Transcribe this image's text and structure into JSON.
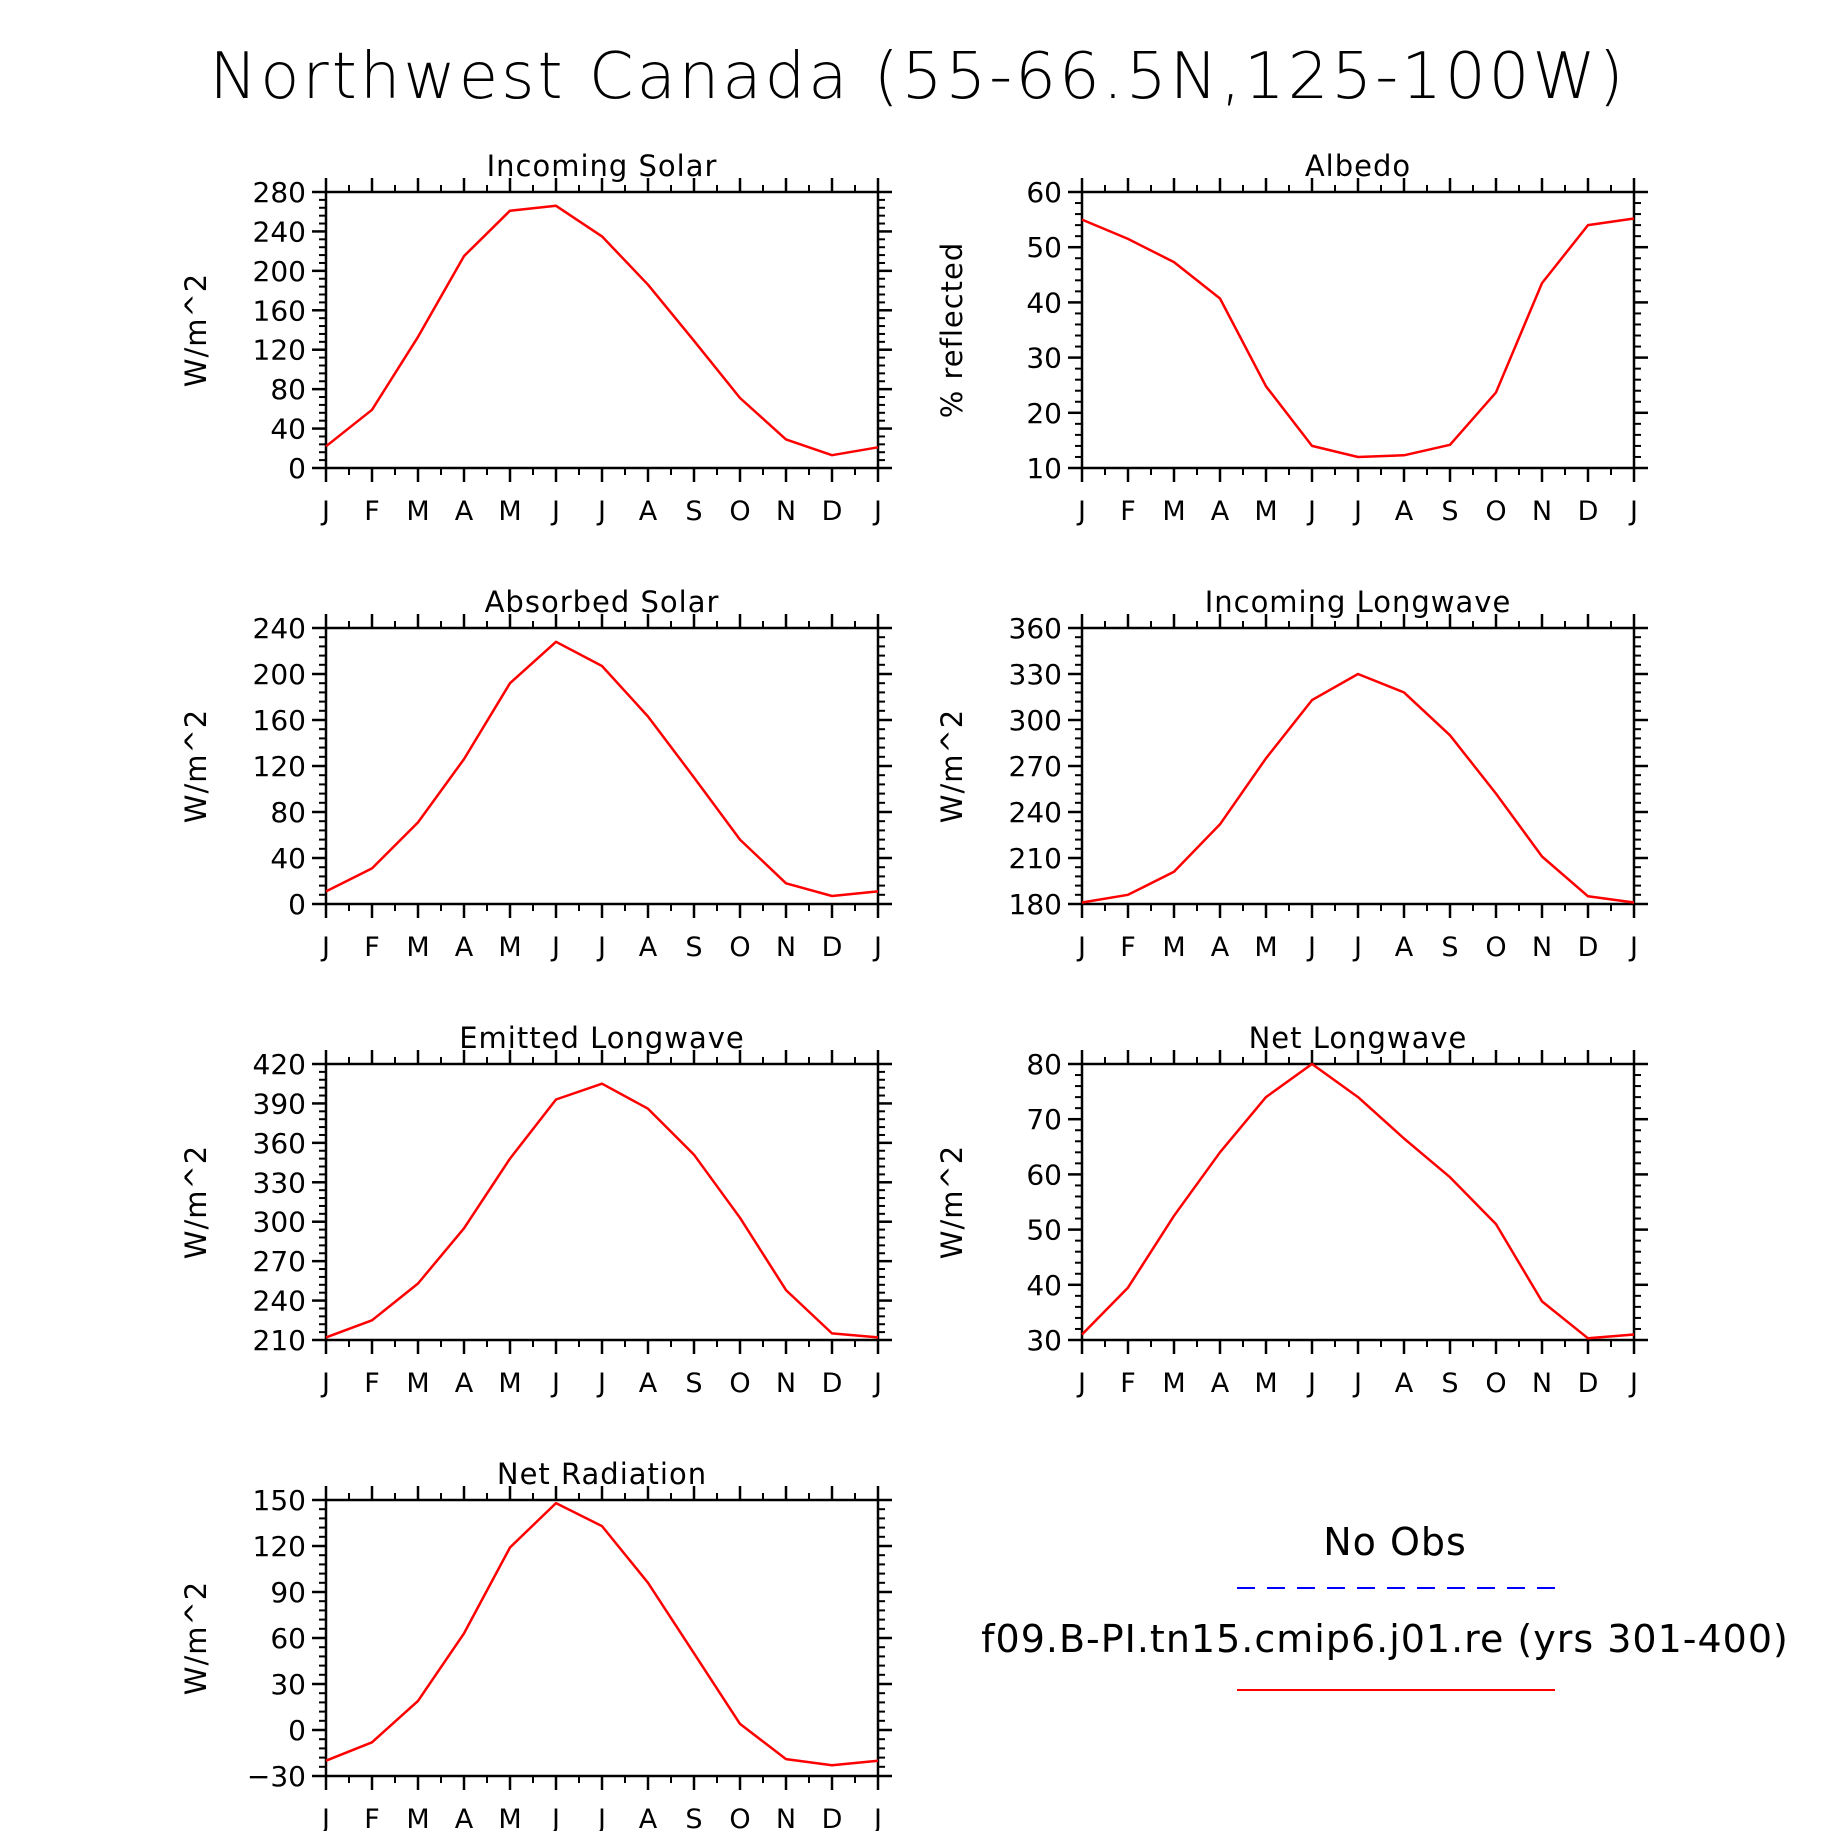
{
  "title": "Northwest Canada (55-66.5N,125-100W)",
  "months": [
    "J",
    "F",
    "M",
    "A",
    "M",
    "J",
    "J",
    "A",
    "S",
    "O",
    "N",
    "D",
    "J"
  ],
  "legend": {
    "obs_label": "No Obs",
    "obs_color": "#0000ff",
    "model_label": "f09.B-PI.tn15.cmip6.j01.re (yrs 301-400)",
    "model_color": "#ff0000"
  },
  "chart_data": [
    {
      "type": "line",
      "title": "Incoming Solar",
      "ylabel": "W/m^2",
      "ylim": [
        0,
        280
      ],
      "yticks": [
        0,
        40,
        80,
        120,
        160,
        200,
        240,
        280
      ],
      "categories": [
        "J",
        "F",
        "M",
        "A",
        "M",
        "J",
        "J",
        "A",
        "S",
        "O",
        "N",
        "D",
        "J"
      ],
      "series": [
        {
          "color": "#ff0000",
          "values": [
            22,
            59,
            133,
            215,
            261,
            266,
            235,
            186,
            129,
            71,
            29,
            13,
            21
          ]
        }
      ]
    },
    {
      "type": "line",
      "title": "Albedo",
      "ylabel": "% reflected",
      "ylim": [
        10,
        60
      ],
      "yticks": [
        10,
        20,
        30,
        40,
        50,
        60
      ],
      "categories": [
        "J",
        "F",
        "M",
        "A",
        "M",
        "J",
        "J",
        "A",
        "S",
        "O",
        "N",
        "D",
        "J"
      ],
      "series": [
        {
          "color": "#ff0000",
          "values": [
            55,
            51.5,
            47.3,
            40.7,
            24.8,
            14,
            12,
            12.3,
            14.2,
            23.7,
            43.5,
            54,
            55.2
          ]
        }
      ]
    },
    {
      "type": "line",
      "title": "Absorbed Solar",
      "ylabel": "W/m^2",
      "ylim": [
        0,
        240
      ],
      "yticks": [
        0,
        40,
        80,
        120,
        160,
        200,
        240
      ],
      "categories": [
        "J",
        "F",
        "M",
        "A",
        "M",
        "J",
        "J",
        "A",
        "S",
        "O",
        "N",
        "D",
        "J"
      ],
      "series": [
        {
          "color": "#ff0000",
          "values": [
            11,
            31,
            71,
            126,
            192,
            228,
            207,
            163,
            110,
            56,
            18,
            7,
            11
          ]
        }
      ]
    },
    {
      "type": "line",
      "title": "Incoming Longwave",
      "ylabel": "W/m^2",
      "ylim": [
        180,
        360
      ],
      "yticks": [
        180,
        210,
        240,
        270,
        300,
        330,
        360
      ],
      "categories": [
        "J",
        "F",
        "M",
        "A",
        "M",
        "J",
        "J",
        "A",
        "S",
        "O",
        "N",
        "D",
        "J"
      ],
      "series": [
        {
          "color": "#ff0000",
          "values": [
            181,
            186,
            201,
            232,
            275,
            313,
            330,
            318,
            290,
            252,
            211,
            185,
            181
          ]
        }
      ]
    },
    {
      "type": "line",
      "title": "Emitted Longwave",
      "ylabel": "W/m^2",
      "ylim": [
        210,
        420
      ],
      "yticks": [
        210,
        240,
        270,
        300,
        330,
        360,
        390,
        420
      ],
      "categories": [
        "J",
        "F",
        "M",
        "A",
        "M",
        "J",
        "J",
        "A",
        "S",
        "O",
        "N",
        "D",
        "J"
      ],
      "series": [
        {
          "color": "#ff0000",
          "values": [
            212,
            225,
            253,
            295,
            348,
            393,
            405,
            386,
            351,
            303,
            248,
            215,
            212
          ]
        }
      ]
    },
    {
      "type": "line",
      "title": "Net Longwave",
      "ylabel": "W/m^2",
      "ylim": [
        30,
        80
      ],
      "yticks": [
        30,
        40,
        50,
        60,
        70,
        80
      ],
      "categories": [
        "J",
        "F",
        "M",
        "A",
        "M",
        "J",
        "J",
        "A",
        "S",
        "O",
        "N",
        "D",
        "J"
      ],
      "series": [
        {
          "color": "#ff0000",
          "values": [
            31,
            39.5,
            52.5,
            64,
            74,
            80,
            74,
            66.5,
            59.5,
            51,
            37,
            30.3,
            31
          ]
        }
      ]
    },
    {
      "type": "line",
      "title": "Net Radiation",
      "ylabel": "W/m^2",
      "ylim": [
        -30,
        150
      ],
      "yticks": [
        -30,
        0,
        30,
        60,
        90,
        120,
        150
      ],
      "categories": [
        "J",
        "F",
        "M",
        "A",
        "M",
        "J",
        "J",
        "A",
        "S",
        "O",
        "N",
        "D",
        "J"
      ],
      "series": [
        {
          "color": "#ff0000",
          "values": [
            -20,
            -8,
            19,
            63,
            119,
            148,
            133,
            96,
            50,
            4,
            -19,
            -23,
            -20
          ]
        }
      ]
    }
  ]
}
